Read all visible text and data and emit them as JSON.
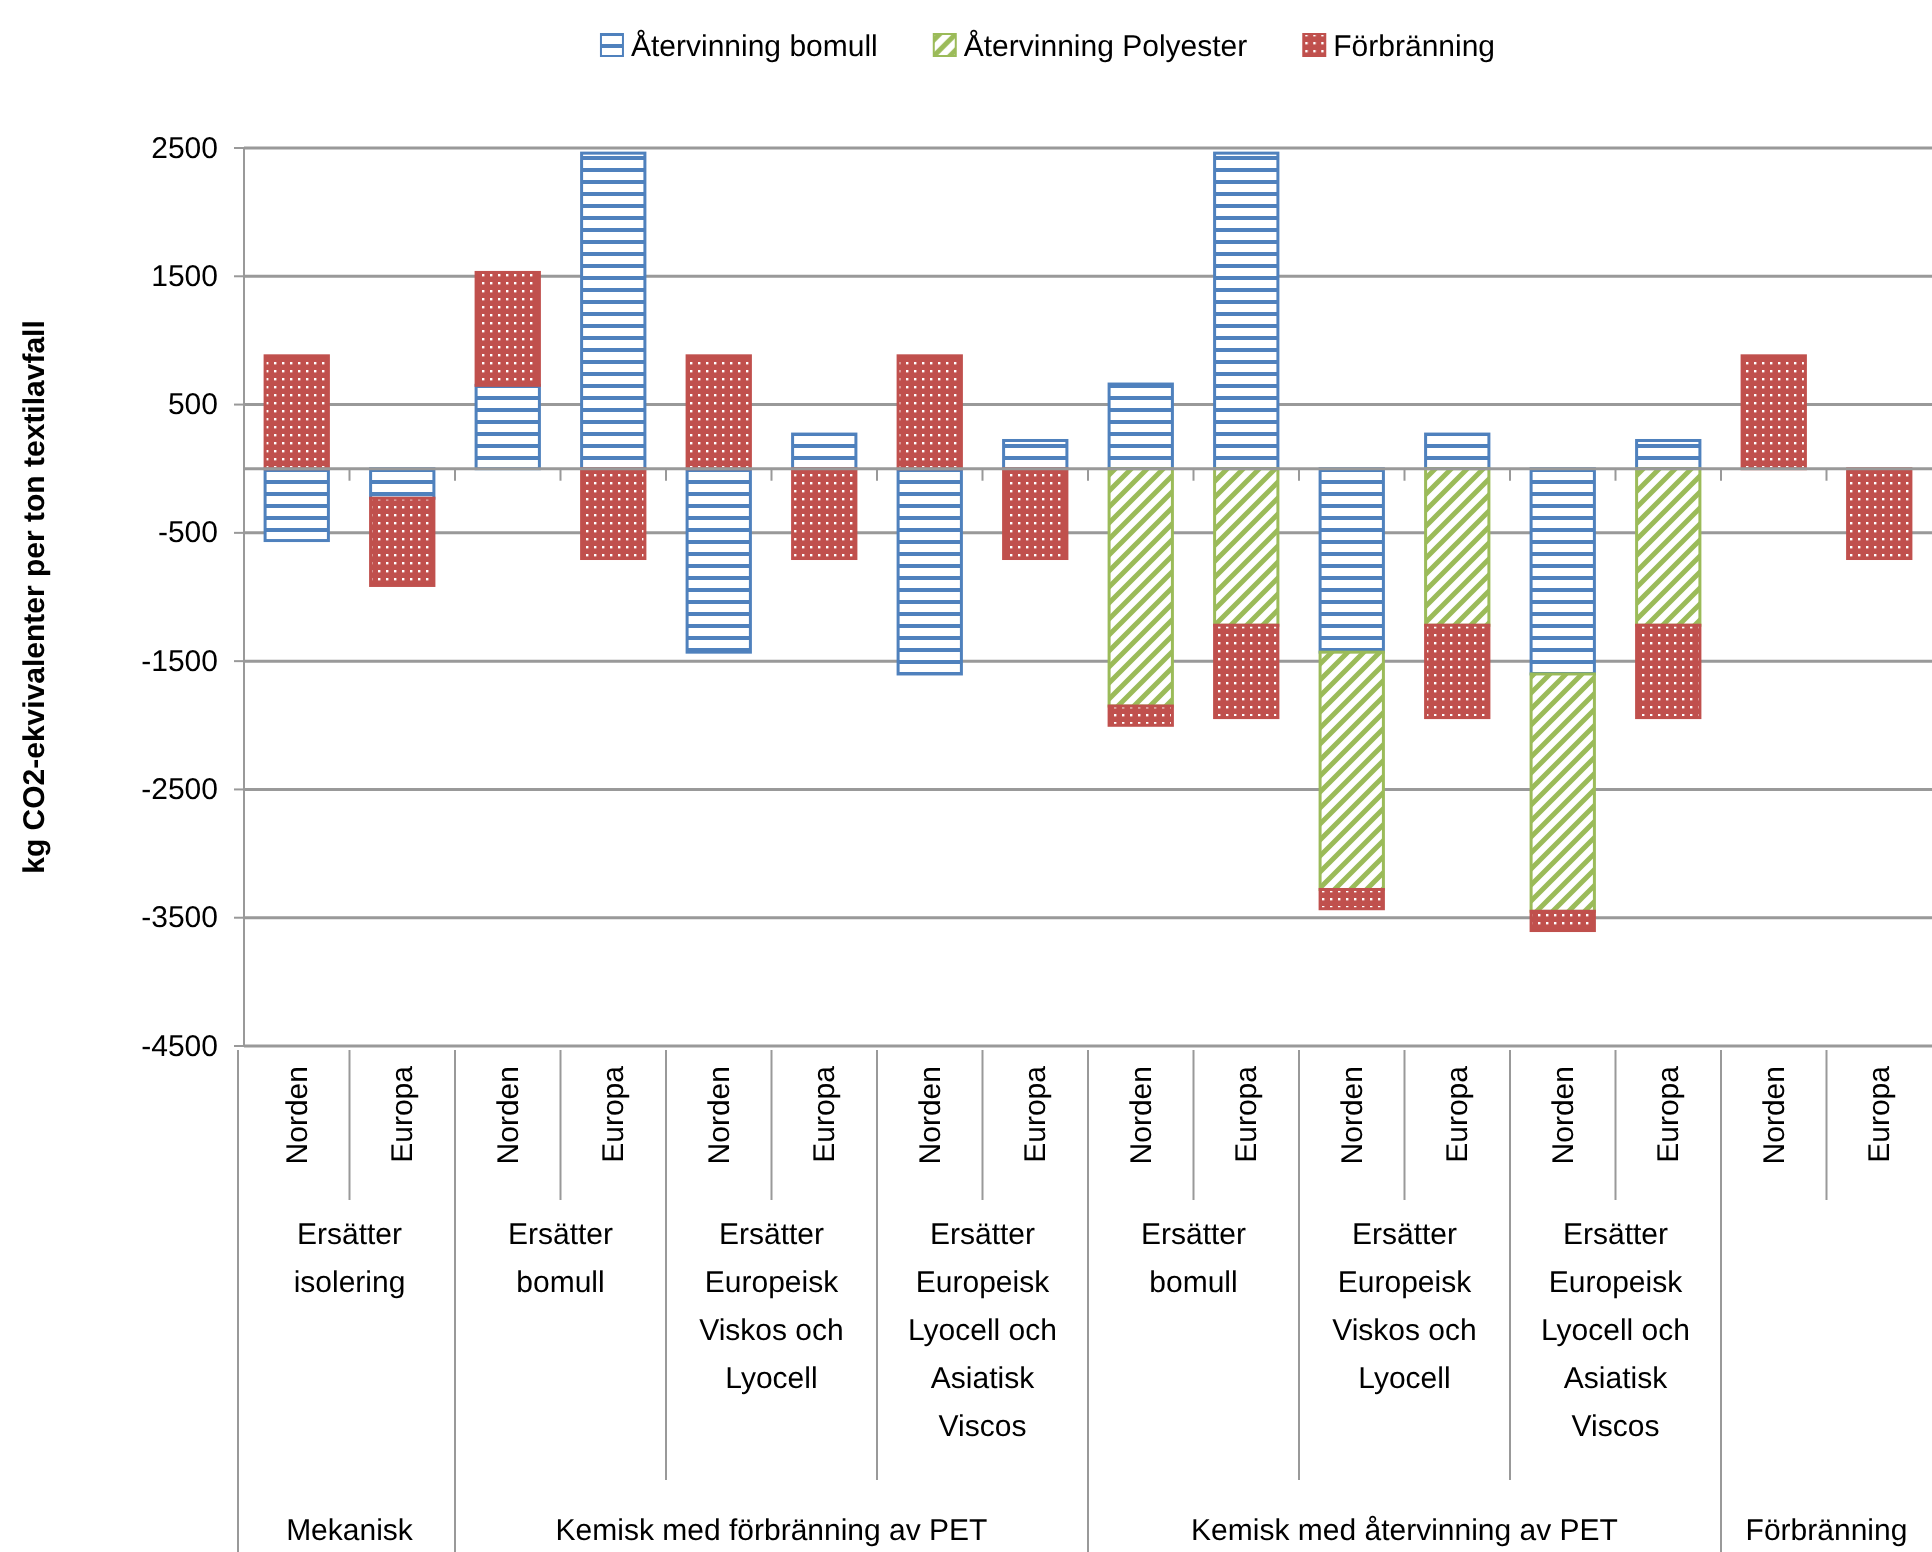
{
  "chart_data": {
    "type": "bar",
    "stacked": true,
    "ylabel": "kg CO2-ekvivalenter per ton textilavfall",
    "categories": [
      "Norden",
      "Europa",
      "Norden",
      "Europa",
      "Norden",
      "Europa",
      "Norden",
      "Europa",
      "Norden",
      "Europa",
      "Norden",
      "Europa",
      "Norden",
      "Europa",
      "Norden",
      "Europa"
    ],
    "series": [
      {
        "name": "Återvinning bomull",
        "color": "#4f81bd",
        "values": [
          -560,
          -230,
          650,
          2460,
          -1430,
          270,
          -1600,
          220,
          660,
          2460,
          -1430,
          270,
          -1600,
          220,
          null,
          null
        ]
      },
      {
        "name": "Återvinning Polyester",
        "color": "#9bbb59",
        "values": [
          null,
          null,
          null,
          null,
          null,
          null,
          null,
          null,
          -1850,
          -1220,
          -1850,
          -1220,
          -1850,
          -1220,
          null,
          null
        ]
      },
      {
        "name": "Förbränning",
        "color": "#c0504d",
        "values": [
          880,
          -680,
          880,
          -700,
          880,
          -700,
          880,
          -700,
          -150,
          -720,
          -150,
          -720,
          -150,
          -720,
          880,
          -700
        ]
      }
    ],
    "annotations": [
      "Ersätter isolering",
      "Ersätter bomull",
      "Ersätter Europeisk Viskos och Lyocell",
      "Ersätter Europeisk Lyocell och Asiatisk Viscos",
      "Ersätter bomull",
      "Ersätter Europeisk Viskos och Lyocell",
      "Ersätter Europeisk Lyocell och Asiatisk Viscos",
      "Mekanisk",
      "Kemisk med förbränning av PET",
      "Kemisk med återvinning av PET",
      "Förbränning"
    ],
    "ylim": [
      -4500,
      2500
    ],
    "yticks": [
      -4500,
      -3500,
      -2500,
      -1500,
      -500,
      500,
      1500,
      2500
    ],
    "grid": "y",
    "legend": "top"
  }
}
